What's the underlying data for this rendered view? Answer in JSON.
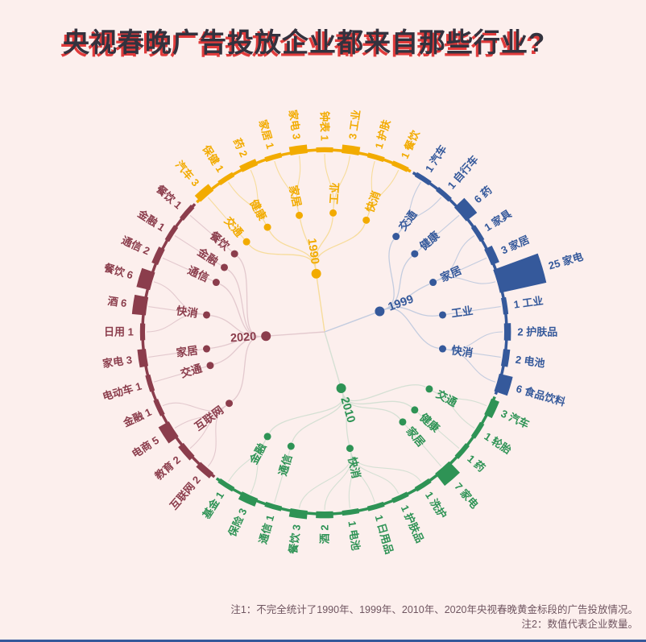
{
  "title": "央视春晚广告投放企业都来自那些行业?",
  "notes": {
    "note1": "注1：不完全统计了1990年、1999年、2010年、2020年央视春晚黄金标段的广告投放情况。",
    "note2": "注2：数值代表企业数量。"
  },
  "accent_colors": {
    "title_text": "#33323e",
    "title_shadow": "#e03b3b",
    "background": "#fcefed",
    "bottom_strip": "#35599b"
  },
  "chart_data": {
    "type": "radial-dendrogram",
    "legend_note": "数值代表企业数量",
    "sections": [
      {
        "year": "1990",
        "color": "#F2AB00",
        "link_color": "#F7DC9B",
        "groups": [
          {
            "name": "交通",
            "leaves": [
              {
                "name": "汽车",
                "value": 3
              }
            ]
          },
          {
            "name": "健康",
            "leaves": [
              {
                "name": "保健",
                "value": 1
              },
              {
                "name": "药",
                "value": 2
              }
            ]
          },
          {
            "name": "家居",
            "leaves": [
              {
                "name": "家居",
                "value": 1
              },
              {
                "name": "家电",
                "value": 3
              }
            ]
          },
          {
            "name": "工业",
            "leaves": [
              {
                "name": "钟表",
                "value": 1
              },
              {
                "name": "工业",
                "value": 3
              }
            ]
          },
          {
            "name": "快消",
            "leaves": [
              {
                "name": "护肤",
                "value": 1
              },
              {
                "name": "餐饮",
                "value": 1
              }
            ]
          }
        ]
      },
      {
        "year": "1999",
        "color": "#35599B",
        "link_color": "#C3CCDF",
        "groups": [
          {
            "name": "交通",
            "leaves": [
              {
                "name": "汽车",
                "value": 1
              },
              {
                "name": "自行车",
                "value": 1
              }
            ]
          },
          {
            "name": "健康",
            "leaves": [
              {
                "name": "药",
                "value": 6
              }
            ]
          },
          {
            "name": "家居",
            "leaves": [
              {
                "name": "家具",
                "value": 1
              },
              {
                "name": "家居",
                "value": 3
              },
              {
                "name": "家电",
                "value": 25
              }
            ]
          },
          {
            "name": "工业",
            "leaves": [
              {
                "name": "工业",
                "value": 1
              }
            ]
          },
          {
            "name": "快消",
            "leaves": [
              {
                "name": "护肤品",
                "value": 2
              },
              {
                "name": "电池",
                "value": 2
              },
              {
                "name": "食品饮料",
                "value": 6
              }
            ]
          }
        ]
      },
      {
        "year": "2010",
        "color": "#2E9355",
        "link_color": "#D5E0D4",
        "groups": [
          {
            "name": "交通",
            "leaves": [
              {
                "name": "汽车",
                "value": 3
              },
              {
                "name": "轮胎",
                "value": 1
              }
            ]
          },
          {
            "name": "健康",
            "leaves": [
              {
                "name": "药",
                "value": 1
              }
            ]
          },
          {
            "name": "家居",
            "leaves": [
              {
                "name": "家电",
                "value": 7
              }
            ]
          },
          {
            "name": "快消",
            "leaves": [
              {
                "name": "洗护",
                "value": 1
              },
              {
                "name": "护肤品",
                "value": 1
              },
              {
                "name": "日用品",
                "value": 1
              },
              {
                "name": "电池",
                "value": 1
              },
              {
                "name": "酒",
                "value": 2
              },
              {
                "name": "餐饮",
                "value": 3
              }
            ]
          },
          {
            "name": "通信",
            "leaves": [
              {
                "name": "通信",
                "value": 1
              }
            ]
          },
          {
            "name": "金融",
            "leaves": [
              {
                "name": "保险",
                "value": 3
              },
              {
                "name": "基金",
                "value": 1
              }
            ]
          }
        ]
      },
      {
        "year": "2020",
        "color": "#8B3D4C",
        "link_color": "#E3C9CE",
        "groups": [
          {
            "name": "互联网",
            "leaves": [
              {
                "name": "互联网",
                "value": 2
              },
              {
                "name": "教育",
                "value": 2
              },
              {
                "name": "电商",
                "value": 5
              },
              {
                "name": "金融",
                "value": 1
              }
            ]
          },
          {
            "name": "交通",
            "leaves": [
              {
                "name": "电动车",
                "value": 1
              }
            ]
          },
          {
            "name": "家居",
            "leaves": [
              {
                "name": "家电",
                "value": 3
              }
            ]
          },
          {
            "name": "快消",
            "leaves": [
              {
                "name": "日用",
                "value": 1
              },
              {
                "name": "酒",
                "value": 6
              },
              {
                "name": "餐饮",
                "value": 6
              }
            ]
          },
          {
            "name": "通信",
            "leaves": [
              {
                "name": "通信",
                "value": 2
              }
            ]
          },
          {
            "name": "金融",
            "leaves": [
              {
                "name": "金融",
                "value": 1
              }
            ]
          },
          {
            "name": "餐饮",
            "leaves": [
              {
                "name": "餐饮",
                "value": 1
              }
            ]
          }
        ]
      }
    ]
  }
}
